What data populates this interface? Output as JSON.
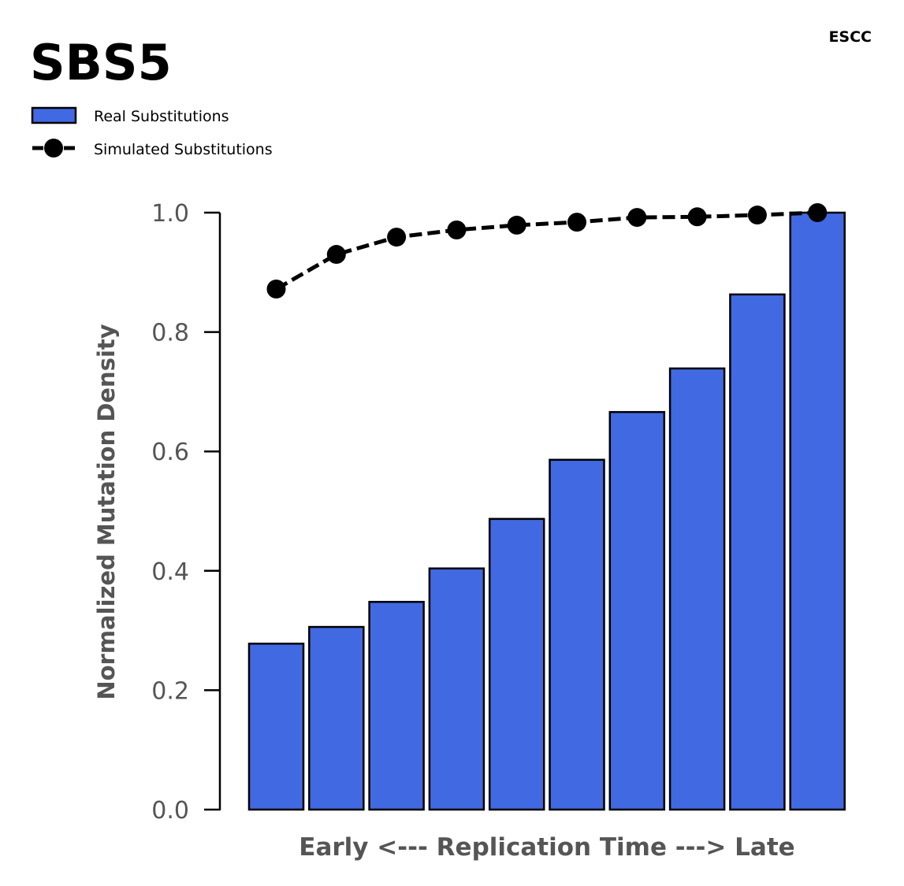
{
  "chart_data": {
    "type": "bar",
    "title": "SBS5",
    "subtitle": "ESCC",
    "xlabel": "Early <--- Replication Time ---> Late",
    "ylabel": "Normalized Mutation Density",
    "ylim": [
      0,
      1.0
    ],
    "yticks": [
      "0.0",
      "0.2",
      "0.4",
      "0.6",
      "0.8",
      "1.0"
    ],
    "grid": false,
    "legend_position": "top-left",
    "colors": {
      "bar": "#4169E1",
      "line": "#000000"
    },
    "series": [
      {
        "name": "Real Substitutions",
        "type": "bar",
        "values": [
          0.278,
          0.306,
          0.348,
          0.404,
          0.487,
          0.586,
          0.666,
          0.739,
          0.863,
          1.0
        ]
      },
      {
        "name": "Simulated Substitutions",
        "type": "line",
        "values": [
          0.872,
          0.93,
          0.959,
          0.971,
          0.979,
          0.984,
          0.992,
          0.993,
          0.996,
          1.0
        ]
      }
    ]
  }
}
